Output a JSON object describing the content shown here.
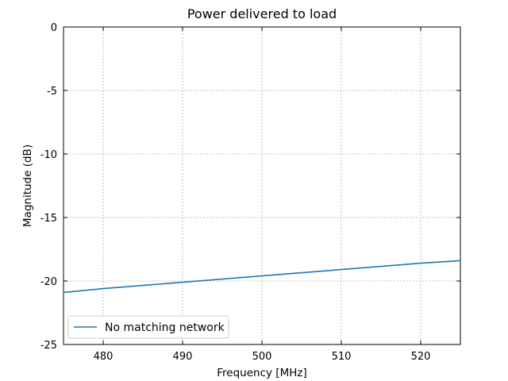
{
  "chart_data": {
    "type": "line",
    "title": "Power delivered to load",
    "xlabel": "Frequency [MHz]",
    "ylabel": "Magnitude (dB)",
    "xlim": [
      475,
      525
    ],
    "ylim": [
      -25,
      0
    ],
    "xticks": [
      480,
      490,
      500,
      510,
      520
    ],
    "yticks": [
      0,
      -5,
      -10,
      -15,
      -20,
      -25
    ],
    "grid": true,
    "legend_position": "lower-left",
    "series": [
      {
        "name": "No matching network",
        "color": "#1f77b4",
        "x": [
          475,
          480,
          485,
          490,
          495,
          500,
          505,
          510,
          515,
          520,
          525
        ],
        "y": [
          -20.9,
          -20.6,
          -20.35,
          -20.1,
          -19.85,
          -19.6,
          -19.35,
          -19.1,
          -18.85,
          -18.6,
          -18.4
        ]
      }
    ]
  }
}
